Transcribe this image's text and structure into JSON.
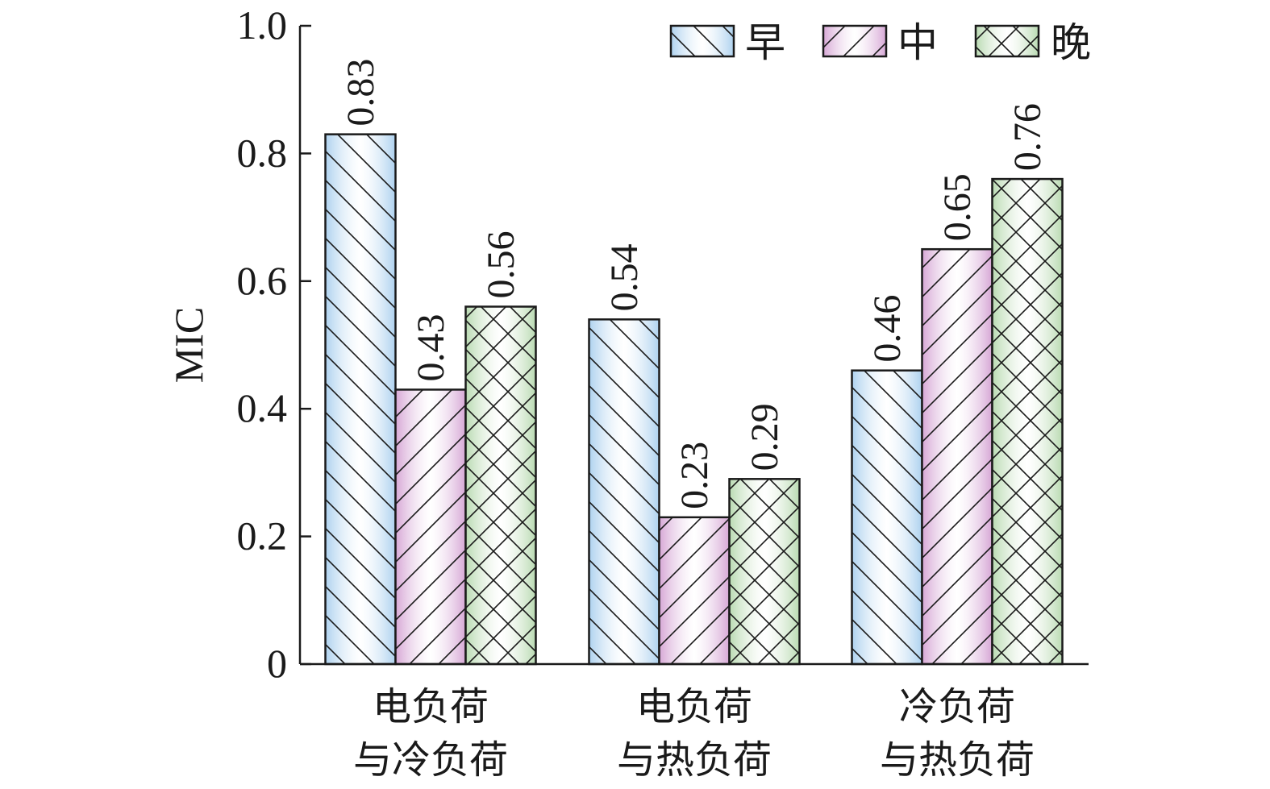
{
  "chart_data": {
    "type": "bar",
    "categories": [
      [
        "电负荷",
        "与冷负荷"
      ],
      [
        "电负荷",
        "与热负荷"
      ],
      [
        "冷负荷",
        "与热负荷"
      ]
    ],
    "series": [
      {
        "name": "早",
        "values": [
          0.83,
          0.54,
          0.46
        ],
        "value_labels": [
          "0.83",
          "0.54",
          "0.46"
        ],
        "color": "#a9cfee",
        "pattern": "backslash"
      },
      {
        "name": "中",
        "values": [
          0.43,
          0.23,
          0.65
        ],
        "value_labels": [
          "0.43",
          "0.23",
          "0.65"
        ],
        "color": "#d4a2d3",
        "pattern": "slash"
      },
      {
        "name": "晚",
        "values": [
          0.56,
          0.29,
          0.76
        ],
        "value_labels": [
          "0.56",
          "0.29",
          "0.76"
        ],
        "color": "#b5d8ad",
        "pattern": "cross"
      }
    ],
    "ylabel": "MIC",
    "ylim": [
      0,
      1.0
    ],
    "yticks": [
      0,
      0.2,
      0.4,
      0.6,
      0.8,
      1.0
    ],
    "ytick_labels": [
      "0",
      "0.2",
      "0.4",
      "0.6",
      "0.8",
      "1.0"
    ],
    "grid": false,
    "legend_position": "top-right"
  }
}
